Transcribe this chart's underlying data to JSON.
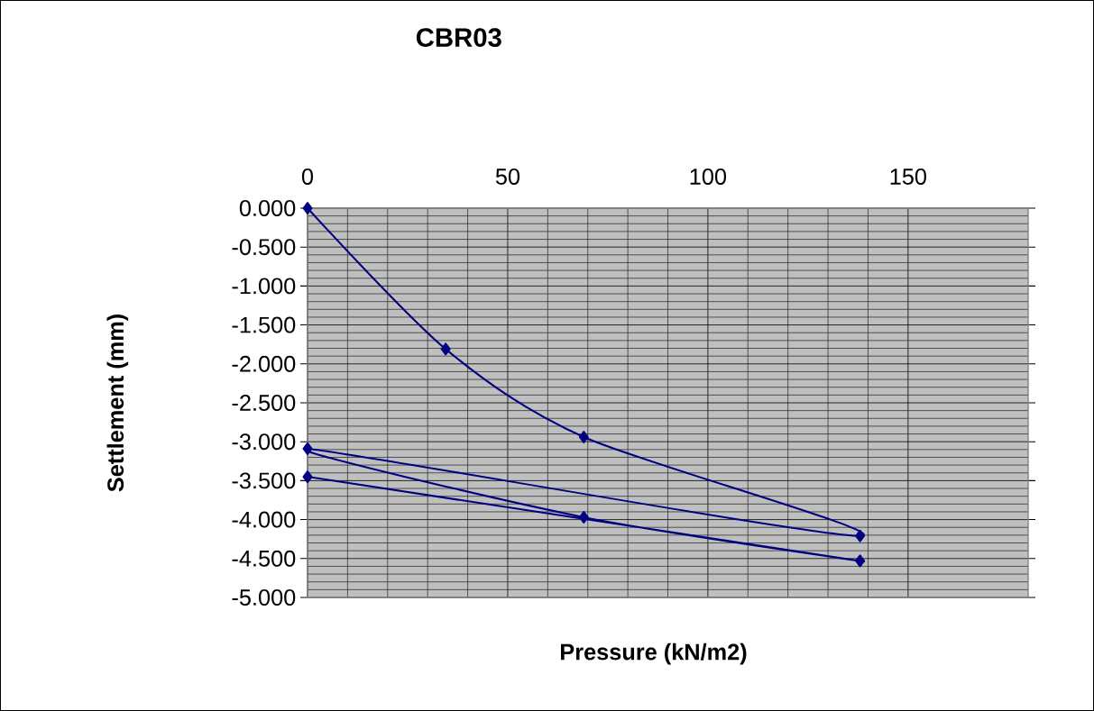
{
  "chart_data": {
    "type": "line",
    "title": "CBR03",
    "xlabel": "Pressure (kN/m2)",
    "ylabel": "Settlement (mm)",
    "x": [
      0,
      34.5,
      69,
      138,
      0,
      69,
      138,
      0
    ],
    "series": [
      {
        "color": "#000080",
        "values": [
          0,
          -1.81,
          -2.94,
          -4.21,
          -3.09,
          -3.97,
          -4.53,
          -3.45
        ]
      }
    ],
    "xlim": [
      0,
      180
    ],
    "ylim": [
      -5,
      0
    ],
    "xticks": [
      0,
      50,
      100,
      150
    ],
    "yticks": [
      {
        "value": 0,
        "label": "0.000"
      },
      {
        "value": -0.5,
        "label": "-0.500"
      },
      {
        "value": -1,
        "label": "-1.000"
      },
      {
        "value": -1.5,
        "label": "-1.500"
      },
      {
        "value": -2,
        "label": "-2.000"
      },
      {
        "value": -2.5,
        "label": "-2.500"
      },
      {
        "value": -3,
        "label": "-3.000"
      },
      {
        "value": -3.5,
        "label": "-3.500"
      },
      {
        "value": -4,
        "label": "-4.000"
      },
      {
        "value": -4.5,
        "label": "-4.500"
      },
      {
        "value": -5,
        "label": "-5.000"
      }
    ],
    "grid": true,
    "marker": "diamond",
    "line_style": "solid"
  }
}
